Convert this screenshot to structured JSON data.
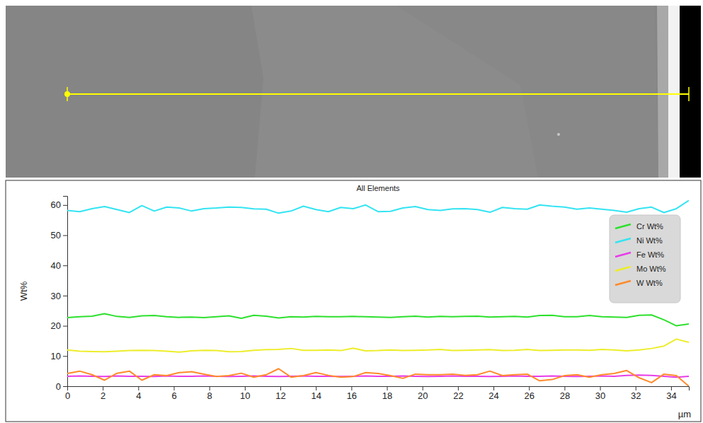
{
  "chart_data": {
    "type": "line",
    "title": "All Elements",
    "x_label": "µm",
    "y_label": "Wt%",
    "x": [
      0,
      0.7,
      1.4,
      2.1,
      2.8,
      3.5,
      4.2,
      4.9,
      5.6,
      6.3,
      7,
      7.7,
      8.4,
      9.1,
      9.8,
      10.5,
      11.2,
      11.9,
      12.6,
      13.3,
      14,
      14.7,
      15.4,
      16.1,
      16.8,
      17.5,
      18.2,
      18.9,
      19.6,
      20.3,
      21,
      21.7,
      22.4,
      23.1,
      23.8,
      24.5,
      25.2,
      25.9,
      26.6,
      27.3,
      28,
      28.7,
      29.4,
      30.1,
      30.8,
      31.5,
      32.2,
      32.9,
      33.6,
      34.3,
      35
    ],
    "series": [
      {
        "name": "Cr Wt%",
        "color": "#2ee02e",
        "values": [
          22.7,
          23.0,
          23.2,
          24.0,
          23.1,
          22.8,
          23.3,
          23.4,
          23.0,
          22.8,
          22.9,
          22.7,
          23.0,
          23.3,
          22.5,
          23.5,
          23.2,
          22.6,
          23.0,
          22.9,
          23.1,
          23.0,
          23.0,
          23.1,
          23.0,
          22.9,
          22.8,
          23.0,
          23.2,
          22.9,
          23.1,
          23.0,
          23.1,
          23.2,
          22.9,
          23.0,
          23.1,
          22.9,
          23.4,
          23.5,
          23.0,
          23.0,
          23.4,
          23.0,
          22.9,
          22.8,
          23.5,
          23.6,
          22.0,
          20.0,
          20.6
        ]
      },
      {
        "name": "Ni Wt%",
        "color": "#33e4f2",
        "values": [
          58.2,
          57.8,
          58.8,
          59.5,
          58.5,
          57.5,
          59.8,
          58.0,
          59.3,
          59.0,
          58.0,
          58.8,
          59.0,
          59.3,
          59.2,
          58.7,
          58.6,
          57.3,
          58.0,
          59.6,
          58.5,
          57.8,
          59.2,
          58.8,
          60.0,
          57.8,
          57.9,
          59.0,
          59.5,
          58.5,
          58.2,
          58.7,
          58.8,
          58.5,
          57.6,
          59.2,
          58.8,
          58.6,
          60.0,
          59.6,
          59.3,
          58.6,
          59.0,
          58.6,
          58.2,
          57.6,
          58.8,
          59.3,
          57.5,
          58.8,
          61.5
        ]
      },
      {
        "name": "Fe Wt%",
        "color": "#e83ce8",
        "values": [
          3.3,
          3.4,
          3.3,
          3.2,
          3.4,
          3.3,
          3.3,
          3.2,
          3.4,
          3.3,
          3.3,
          3.4,
          3.3,
          3.2,
          3.3,
          3.4,
          3.3,
          3.2,
          3.3,
          3.4,
          3.3,
          3.3,
          3.2,
          3.3,
          3.4,
          3.3,
          3.3,
          3.4,
          3.3,
          3.2,
          3.3,
          3.4,
          3.3,
          3.3,
          3.2,
          3.3,
          3.4,
          3.3,
          3.3,
          3.4,
          3.3,
          3.2,
          3.3,
          3.4,
          3.3,
          3.6,
          3.7,
          3.6,
          3.3,
          3.0,
          3.3
        ]
      },
      {
        "name": "Mo Wt%",
        "color": "#eded2a",
        "values": [
          12.0,
          11.6,
          11.5,
          11.4,
          11.6,
          11.8,
          11.9,
          11.8,
          11.6,
          11.3,
          11.7,
          11.9,
          11.8,
          11.4,
          11.5,
          11.9,
          12.1,
          12.2,
          12.5,
          11.9,
          11.9,
          12.0,
          11.8,
          12.6,
          11.7,
          11.8,
          12.0,
          11.8,
          11.9,
          12.0,
          12.2,
          11.8,
          11.9,
          12.0,
          12.1,
          11.8,
          11.9,
          12.2,
          11.8,
          11.9,
          12.0,
          12.0,
          11.9,
          12.2,
          12.0,
          11.7,
          12.0,
          12.5,
          13.3,
          15.6,
          14.5
        ]
      },
      {
        "name": "W Wt%",
        "color": "#ff8a2a",
        "values": [
          4.2,
          5.0,
          3.8,
          2.0,
          4.3,
          5.0,
          2.0,
          3.8,
          3.5,
          4.5,
          4.8,
          4.0,
          3.2,
          3.5,
          4.3,
          3.0,
          3.8,
          5.8,
          3.0,
          3.5,
          4.5,
          3.6,
          3.0,
          3.2,
          4.5,
          4.2,
          3.5,
          2.6,
          4.0,
          3.8,
          3.8,
          4.0,
          3.6,
          3.8,
          5.0,
          3.5,
          3.8,
          4.0,
          1.8,
          2.2,
          3.5,
          3.8,
          3.0,
          3.8,
          4.2,
          5.2,
          2.8,
          1.2,
          4.0,
          3.5,
          0.0
        ]
      }
    ],
    "xlim": [
      0,
      35
    ],
    "xticks": [
      0,
      2,
      4,
      6,
      8,
      10,
      12,
      14,
      16,
      18,
      20,
      22,
      24,
      26,
      28,
      30,
      32,
      34
    ],
    "ylim": [
      0,
      63
    ],
    "yticks": [
      0,
      10,
      20,
      30,
      40,
      50,
      60
    ],
    "grid": false,
    "legend": "top-right"
  }
}
